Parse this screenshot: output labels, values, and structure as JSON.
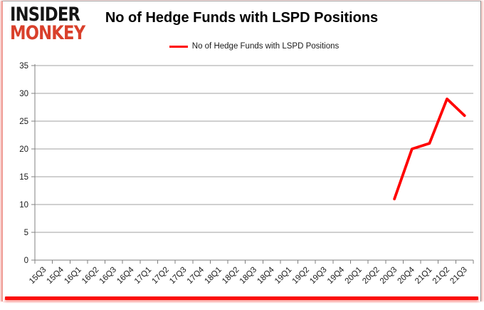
{
  "brand": {
    "line1": "INSIDER",
    "line2": "MONKEY",
    "line1_color": "#141414",
    "line2_color": "#d9402b"
  },
  "header": {
    "title": "No of Hedge Funds with LSPD Positions"
  },
  "legend": {
    "label": "No of Hedge Funds with LSPD Positions",
    "color": "#ff0000"
  },
  "chart_data": {
    "type": "line",
    "title": "No of Hedge Funds with LSPD Positions",
    "xlabel": "",
    "ylabel": "",
    "ylim": [
      0,
      35
    ],
    "ytick_step": 5,
    "grid": true,
    "legend_position": "top-center",
    "categories": [
      "15Q3",
      "15Q4",
      "16Q1",
      "16Q2",
      "16Q3",
      "16Q4",
      "17Q1",
      "17Q2",
      "17Q3",
      "17Q4",
      "18Q1",
      "18Q2",
      "18Q3",
      "18Q4",
      "19Q1",
      "19Q2",
      "19Q3",
      "19Q4",
      "20Q1",
      "20Q2",
      "20Q3",
      "20Q4",
      "21Q1",
      "21Q2",
      "21Q3"
    ],
    "series": [
      {
        "name": "No of Hedge Funds with LSPD Positions",
        "color": "#ff0000",
        "values": [
          null,
          null,
          null,
          null,
          null,
          null,
          null,
          null,
          null,
          null,
          null,
          null,
          null,
          null,
          null,
          null,
          null,
          null,
          null,
          null,
          11,
          20,
          21,
          29,
          26
        ]
      }
    ],
    "colors": {
      "gridline": "#a0a0a0",
      "axis": "#808080",
      "tick_label": "#1a1a1a"
    }
  }
}
